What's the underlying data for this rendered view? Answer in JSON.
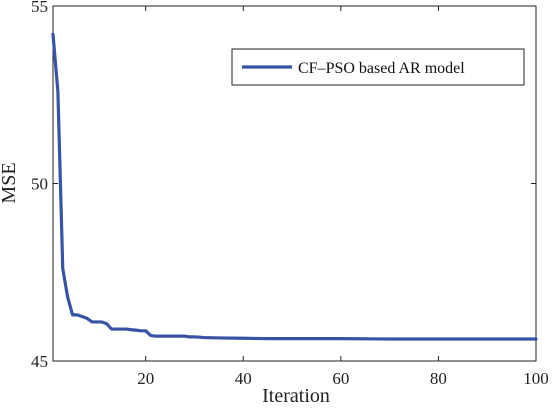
{
  "chart_data": {
    "type": "line",
    "xlabel": "Iteration",
    "ylabel": "MSE",
    "xlim": [
      1,
      100
    ],
    "ylim": [
      45,
      55
    ],
    "xticks": [
      20,
      40,
      60,
      80,
      100
    ],
    "yticks": [
      45,
      50,
      55
    ],
    "grid": false,
    "legend_position": "top-right",
    "series": [
      {
        "name": "CF–PSO based AR model",
        "color": "#3853a3",
        "x": [
          1,
          2,
          3,
          4,
          5,
          6,
          7,
          8,
          9,
          10,
          11,
          12,
          13,
          14,
          15,
          16,
          17,
          18,
          19,
          20,
          21,
          22,
          23,
          24,
          25,
          26,
          27,
          28,
          29,
          30,
          31,
          32,
          35,
          40,
          45,
          50,
          60,
          70,
          80,
          90,
          100
        ],
        "y": [
          54.2,
          52.6,
          47.6,
          46.8,
          46.3,
          46.3,
          46.25,
          46.2,
          46.1,
          46.1,
          46.1,
          46.05,
          45.9,
          45.9,
          45.9,
          45.9,
          45.88,
          45.87,
          45.85,
          45.85,
          45.72,
          45.7,
          45.7,
          45.7,
          45.7,
          45.7,
          45.7,
          45.7,
          45.68,
          45.68,
          45.67,
          45.66,
          45.65,
          45.64,
          45.63,
          45.63,
          45.63,
          45.62,
          45.62,
          45.62,
          45.62
        ]
      }
    ]
  }
}
